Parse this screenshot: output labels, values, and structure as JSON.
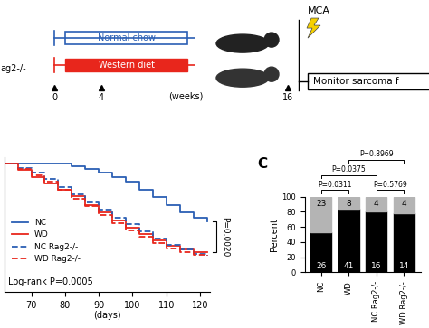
{
  "schematic": {
    "cropped_label": "ag2-/-",
    "groups": [
      {
        "label": "Normal chow",
        "color": "#2b5fb4"
      },
      {
        "label": "Western diet",
        "color": "#e8261c"
      }
    ],
    "timepoints": [
      "0",
      "4",
      "16"
    ],
    "time_unit": "(weeks)",
    "treatment": "MCA",
    "readout": "Monitor sarcoma f"
  },
  "chart_data": [
    {
      "type": "step",
      "x_label": "(days)",
      "x": [
        62,
        66,
        70,
        74,
        78,
        82,
        86,
        90,
        94,
        98,
        102,
        106,
        110,
        114,
        118,
        122
      ],
      "xlim": [
        62,
        123
      ],
      "xticks": [
        70,
        80,
        90,
        100,
        110,
        120
      ],
      "ylim": [
        0,
        105
      ],
      "yticks": [],
      "tick_labels": "x",
      "legend": "left",
      "annotation": "Log-rank P=0.0005",
      "bracket": {
        "between": [
          "NC",
          "WD"
        ],
        "label": "P=0.0020"
      },
      "series": [
        {
          "name": "NC",
          "color": "#2b5fb4",
          "line_style": "solid",
          "values": [
            100,
            100,
            100,
            100,
            100,
            98,
            96,
            93,
            90,
            86,
            80,
            74,
            68,
            62,
            58,
            55
          ]
        },
        {
          "name": "WD",
          "color": "#e8261c",
          "line_style": "solid",
          "values": [
            100,
            95,
            90,
            85,
            80,
            75,
            68,
            62,
            56,
            50,
            45,
            40,
            36,
            33,
            31,
            31
          ]
        },
        {
          "name": "NC Rag2-/-",
          "color": "#2b5fb4",
          "line_style": "dashed",
          "values": [
            100,
            97,
            93,
            88,
            82,
            76,
            70,
            64,
            58,
            53,
            47,
            42,
            37,
            33,
            30,
            28
          ]
        },
        {
          "name": "WD Rag2-/-",
          "color": "#e8261c",
          "line_style": "dashed",
          "values": [
            100,
            96,
            91,
            86,
            80,
            73,
            67,
            60,
            54,
            48,
            43,
            38,
            34,
            31,
            29,
            28
          ]
        }
      ]
    },
    {
      "type": "bar",
      "stacked": true,
      "panel": "C",
      "y_label": "Percent",
      "categories": [
        "NC",
        "WD",
        "NC Rag2-/-",
        "WD Rag2-/-"
      ],
      "ylim": [
        0,
        100
      ],
      "yticks": [
        0,
        20,
        40,
        60,
        80,
        100
      ],
      "series": [
        {
          "color": "#000000",
          "values": [
            53.1,
            83.7,
            80.0,
            77.8
          ],
          "counts": [
            26,
            41,
            16,
            14
          ]
        },
        {
          "color": "#b4b4b4",
          "values": [
            46.9,
            16.3,
            20.0,
            22.2
          ],
          "counts": [
            23,
            8,
            4,
            4
          ]
        }
      ],
      "comparisons": [
        {
          "between": [
            "NC",
            "WD"
          ],
          "label": "P=0.0311"
        },
        {
          "between": [
            "NC Rag2-/-",
            "WD Rag2-/-"
          ],
          "label": "P=0.5769"
        },
        {
          "between": [
            "NC",
            "NC Rag2-/-"
          ],
          "label": "P=0.0375"
        },
        {
          "between": [
            "WD",
            "WD Rag2-/-"
          ],
          "label": "P=0.8969"
        }
      ]
    }
  ]
}
